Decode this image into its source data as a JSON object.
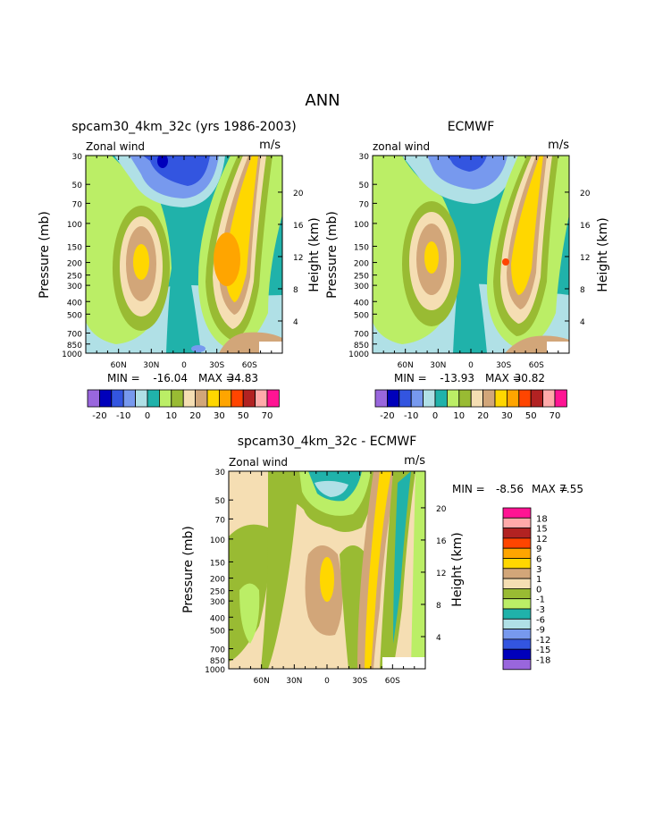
{
  "page": {
    "title": "ANN"
  },
  "colors": {
    "full_bar": [
      "#9966dd",
      "#0000bb",
      "#3355e0",
      "#7799ee",
      "#b0e0e6",
      "#20b2aa",
      "#bbee66",
      "#99bb33",
      "#f5deb3",
      "#d2a679",
      "#ffd700",
      "#ffa500",
      "#ff4500",
      "#b22222",
      "#ffaaaa",
      "#ff1493"
    ],
    "diff_bar": [
      "#ff1493",
      "#ffaaaa",
      "#b22222",
      "#ff4500",
      "#ffa500",
      "#ffd700",
      "#d2a679",
      "#f5deb3",
      "#99bb33",
      "#bbee66",
      "#20b2aa",
      "#b0e0e6",
      "#7799ee",
      "#3355e0",
      "#0000bb",
      "#9966dd"
    ]
  },
  "chart_data": [
    {
      "type": "heatmap",
      "title": "spcam30_4km_32c (yrs 1986-2003)",
      "field_label": "Zonal wind",
      "units": "m/s",
      "ylabel": "Pressure (mb)",
      "y2label": "Height (km)",
      "x_ticks": [
        "60N",
        "30N",
        "0",
        "30S",
        "60S"
      ],
      "y_ticks": [
        "30",
        "50",
        "70",
        "100",
        "150",
        "200",
        "250",
        "300",
        "400",
        "500",
        "700",
        "850",
        "1000"
      ],
      "y2_ticks": [
        "20",
        "16",
        "12",
        "8",
        "4"
      ],
      "min": "-16.04",
      "max": "34.83",
      "min_label": "MIN =",
      "max_label": "MAX =",
      "colorbar_levels": [
        "-20",
        "-10",
        "0",
        "10",
        "20",
        "30",
        "50",
        "70"
      ],
      "features": {
        "nh_jet_max_bin": 8,
        "sh_jet_max_bin": 11,
        "easterly_min_bin": 1
      }
    },
    {
      "type": "heatmap",
      "title": "ECMWF",
      "field_label": "zonal wind",
      "units": "m/s",
      "ylabel": "Pressure (mb)",
      "y2label": "Height (km)",
      "x_ticks": [
        "60N",
        "30N",
        "0",
        "30S",
        "60S"
      ],
      "y_ticks": [
        "30",
        "50",
        "70",
        "100",
        "150",
        "200",
        "250",
        "300",
        "400",
        "500",
        "700",
        "850",
        "1000"
      ],
      "y2_ticks": [
        "20",
        "16",
        "12",
        "8",
        "4"
      ],
      "min": "-13.93",
      "max": "30.82",
      "min_label": "MIN =",
      "max_label": "MAX =",
      "colorbar_levels": [
        "-20",
        "-10",
        "0",
        "10",
        "20",
        "30",
        "50",
        "70"
      ],
      "features": {
        "nh_jet_max_bin": 10,
        "sh_jet_max_bin": 11,
        "easterly_min_bin": 2
      }
    },
    {
      "type": "heatmap",
      "title": "spcam30_4km_32c - ECMWF",
      "field_label": "Zonal wind",
      "units": "m/s",
      "ylabel": "Pressure (mb)",
      "y2label": "Height (km)",
      "x_ticks": [
        "60N",
        "30N",
        "0",
        "30S",
        "60S"
      ],
      "y_ticks": [
        "30",
        "50",
        "70",
        "100",
        "150",
        "200",
        "250",
        "300",
        "400",
        "500",
        "700",
        "850",
        "1000"
      ],
      "y2_ticks": [
        "20",
        "16",
        "12",
        "8",
        "4"
      ],
      "min": "-8.56",
      "max": "7.55",
      "min_label": "MIN =",
      "max_label": "MAX =",
      "colorbar_levels": [
        "18",
        "15",
        "12",
        "9",
        "6",
        "3",
        "1",
        "0",
        "-1",
        "-3",
        "-6",
        "-9",
        "-12",
        "-15",
        "-18"
      ]
    }
  ]
}
